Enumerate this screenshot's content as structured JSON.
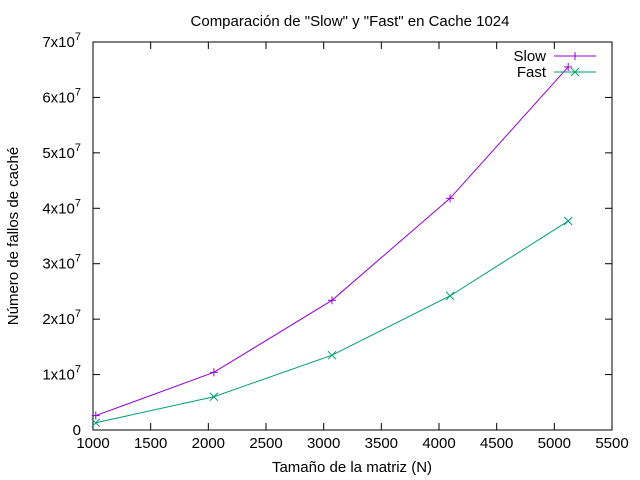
{
  "chart_data": {
    "type": "line",
    "title": "Comparación de \"Slow\" y \"Fast\" en Cache 1024",
    "xlabel": "Tamaño de la matriz (N)",
    "ylabel": "Número de fallos de caché",
    "xlim": [
      1000,
      5500
    ],
    "ylim": [
      0,
      70000000
    ],
    "xticks": [
      1000,
      1500,
      2000,
      2500,
      3000,
      3500,
      4000,
      4500,
      5000,
      5500
    ],
    "xtick_labels": [
      "1000",
      "1500",
      "2000",
      "2500",
      "3000",
      "3500",
      "4000",
      "4500",
      "5000",
      "5500"
    ],
    "yticks": [
      0,
      10000000,
      20000000,
      30000000,
      40000000,
      50000000,
      60000000,
      70000000
    ],
    "ytick_labels": [
      {
        "mantissa": "0",
        "exponent": ""
      },
      {
        "mantissa": "1x10",
        "exponent": "7"
      },
      {
        "mantissa": "2x10",
        "exponent": "7"
      },
      {
        "mantissa": "3x10",
        "exponent": "7"
      },
      {
        "mantissa": "4x10",
        "exponent": "7"
      },
      {
        "mantissa": "5x10",
        "exponent": "7"
      },
      {
        "mantissa": "6x10",
        "exponent": "7"
      },
      {
        "mantissa": "7x10",
        "exponent": "7"
      }
    ],
    "grid": false,
    "legend_position": "top-right",
    "x": [
      1024,
      2048,
      3072,
      4096,
      5120
    ],
    "series": [
      {
        "name": "Slow",
        "color": "#9400d3",
        "marker": "plus",
        "values": [
          2600000,
          10400000,
          23400000,
          41800000,
          65500000
        ]
      },
      {
        "name": "Fast",
        "color": "#009e73",
        "marker": "cross",
        "values": [
          1300000,
          6000000,
          13500000,
          24200000,
          37700000
        ]
      }
    ]
  }
}
